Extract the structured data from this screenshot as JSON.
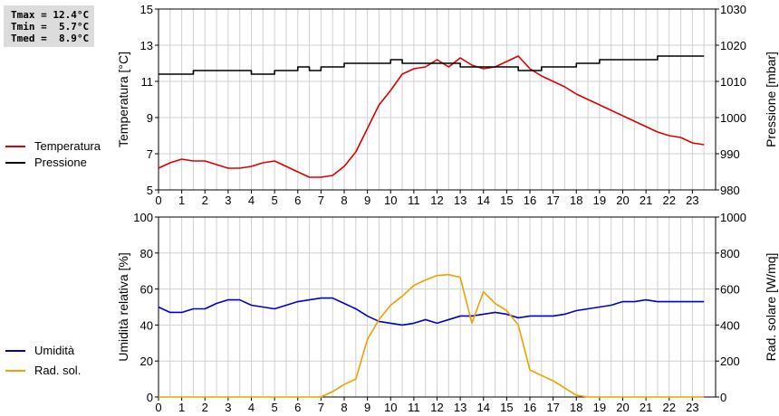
{
  "stats": {
    "tmax": "Tmax = 12.4°C",
    "tmin": "Tmin =  5.7°C",
    "tmed": "Tmed =  8.9°C"
  },
  "colors": {
    "temperature": "#dd0000",
    "pressure": "#000000",
    "humidity": "#0000cc",
    "radiation": "#f0a000",
    "grid": "#d0d0d0"
  },
  "chart_data": [
    {
      "type": "line",
      "xlabel": "",
      "ylabel": "Temperatura [°C]",
      "y2label": "Pressione [mbar]",
      "xlim": [
        0,
        24
      ],
      "xticks": [
        "0",
        "1",
        "2",
        "3",
        "4",
        "5",
        "6",
        "7",
        "8",
        "9",
        "10",
        "11",
        "12",
        "13",
        "14",
        "15",
        "16",
        "17",
        "18",
        "19",
        "20",
        "21",
        "22",
        "23"
      ],
      "ylim": [
        5,
        15
      ],
      "yticks": [
        "5",
        "7",
        "9",
        "11",
        "13",
        "15"
      ],
      "y2lim": [
        980,
        1030
      ],
      "y2ticks": [
        "980",
        "990",
        "1000",
        "1010",
        "1020",
        "1030"
      ],
      "grid": true,
      "series": [
        {
          "name": "Temperatura",
          "axis": "left",
          "x": [
            0,
            0.5,
            1,
            1.5,
            2,
            2.5,
            3,
            3.5,
            4,
            4.5,
            5,
            5.5,
            6,
            6.5,
            7,
            7.5,
            8,
            8.5,
            9,
            9.5,
            10,
            10.5,
            11,
            11.5,
            12,
            12.5,
            13,
            13.5,
            14,
            14.5,
            15,
            15.5,
            16,
            16.5,
            17,
            17.5,
            18,
            18.5,
            19,
            19.5,
            20,
            20.5,
            21,
            21.5,
            22,
            22.5,
            23,
            23.5
          ],
          "values": [
            6.2,
            6.5,
            6.7,
            6.6,
            6.6,
            6.4,
            6.2,
            6.2,
            6.3,
            6.5,
            6.6,
            6.3,
            6.0,
            5.7,
            5.7,
            5.8,
            6.3,
            7.1,
            8.4,
            9.7,
            10.5,
            11.4,
            11.7,
            11.8,
            12.2,
            11.8,
            12.3,
            11.9,
            11.7,
            11.8,
            12.1,
            12.4,
            11.7,
            11.3,
            11.0,
            10.7,
            10.3,
            10.0,
            9.7,
            9.4,
            9.1,
            8.8,
            8.5,
            8.2,
            8.0,
            7.9,
            7.6,
            7.5
          ]
        },
        {
          "name": "Pressione",
          "axis": "right",
          "x": [
            0,
            0.5,
            1,
            1.5,
            2,
            2.5,
            3,
            3.5,
            4,
            4.5,
            5,
            5.5,
            6,
            6.5,
            7,
            7.5,
            8,
            8.5,
            9,
            9.5,
            10,
            10.5,
            11,
            11.5,
            12,
            12.5,
            13,
            13.5,
            14,
            14.5,
            15,
            15.5,
            16,
            16.5,
            17,
            17.5,
            18,
            18.5,
            19,
            19.5,
            20,
            20.5,
            21,
            21.5,
            22,
            22.5,
            23,
            23.5
          ],
          "values": [
            1012,
            1012,
            1012,
            1013,
            1013,
            1013,
            1013,
            1013,
            1012,
            1012,
            1013,
            1013,
            1014,
            1013,
            1014,
            1014,
            1015,
            1015,
            1015,
            1015,
            1016,
            1015,
            1015,
            1015,
            1015,
            1015,
            1014,
            1014,
            1014,
            1014,
            1014,
            1013,
            1013,
            1014,
            1014,
            1014,
            1015,
            1015,
            1016,
            1016,
            1016,
            1016,
            1016,
            1017,
            1017,
            1017,
            1017,
            1017
          ]
        }
      ]
    },
    {
      "type": "line",
      "xlabel": "",
      "ylabel": "Umidità relativa [%]",
      "y2label": "Rad. solare [W/mq]",
      "xlim": [
        0,
        24
      ],
      "xticks": [
        "0",
        "1",
        "2",
        "3",
        "4",
        "5",
        "6",
        "7",
        "8",
        "9",
        "10",
        "11",
        "12",
        "13",
        "14",
        "15",
        "16",
        "17",
        "18",
        "19",
        "20",
        "21",
        "22",
        "23"
      ],
      "ylim": [
        0,
        100
      ],
      "yticks": [
        "0",
        "20",
        "40",
        "60",
        "80",
        "100"
      ],
      "y2lim": [
        0,
        1000
      ],
      "y2ticks": [
        "0",
        "200",
        "400",
        "600",
        "800",
        "1000"
      ],
      "grid": true,
      "series": [
        {
          "name": "Umidità",
          "axis": "left",
          "x": [
            0,
            0.5,
            1,
            1.5,
            2,
            2.5,
            3,
            3.5,
            4,
            4.5,
            5,
            5.5,
            6,
            6.5,
            7,
            7.5,
            8,
            8.5,
            9,
            9.5,
            10,
            10.5,
            11,
            11.5,
            12,
            12.5,
            13,
            13.5,
            14,
            14.5,
            15,
            15.5,
            16,
            16.5,
            17,
            17.5,
            18,
            18.5,
            19,
            19.5,
            20,
            20.5,
            21,
            21.5,
            22,
            22.5,
            23,
            23.5
          ],
          "values": [
            50,
            47,
            47,
            49,
            49,
            52,
            54,
            54,
            51,
            50,
            49,
            51,
            53,
            54,
            55,
            55,
            52,
            49,
            45,
            42,
            41,
            40,
            41,
            43,
            41,
            43,
            45,
            45,
            46,
            47,
            46,
            44,
            45,
            45,
            45,
            46,
            48,
            49,
            50,
            51,
            53,
            53,
            54,
            53,
            53,
            53,
            53,
            53
          ]
        },
        {
          "name": "Rad. sol.",
          "axis": "right",
          "x": [
            0,
            1,
            2,
            3,
            4,
            5,
            6,
            7,
            7.5,
            8,
            8.5,
            9,
            9.5,
            10,
            10.5,
            11,
            11.5,
            12,
            12.5,
            13,
            13.5,
            14,
            14.5,
            15,
            15.5,
            16,
            16.5,
            17,
            17.5,
            18,
            18.5,
            19,
            20,
            21,
            22,
            23,
            23.5
          ],
          "values": [
            0,
            0,
            0,
            0,
            0,
            0,
            0,
            0,
            30,
            70,
            100,
            320,
            430,
            510,
            560,
            620,
            650,
            675,
            680,
            665,
            410,
            585,
            520,
            480,
            400,
            150,
            120,
            90,
            50,
            10,
            0,
            0,
            0,
            0,
            0,
            0,
            0
          ]
        }
      ]
    }
  ],
  "legend": {
    "top": [
      {
        "label": "Temperatura",
        "color": "#dd0000"
      },
      {
        "label": "Pressione",
        "color": "#000000"
      }
    ],
    "bottom": [
      {
        "label": "Umidità",
        "color": "#0000cc"
      },
      {
        "label": "Rad. sol.",
        "color": "#f0a000"
      }
    ]
  }
}
